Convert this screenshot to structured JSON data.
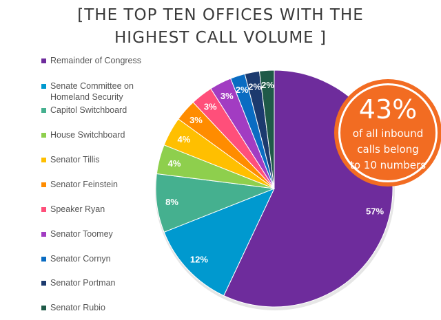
{
  "title_line1": "[THE TOP TEN OFFICES WITH THE",
  "title_line2": "HIGHEST CALL VOLUME ]",
  "callout": {
    "big": "43%",
    "line1": "of all inbound",
    "line2": "calls belong",
    "line3": "to 10 numbers",
    "color": "#f26c22"
  },
  "chart_data": {
    "type": "pie",
    "title": "[THE TOP TEN OFFICES WITH THE HIGHEST CALL VOLUME ]",
    "legend_position": "left",
    "categories": [
      "Remainder of Congress",
      "Senate Committee on Homeland Security",
      "Capitol Switchboard",
      "House Switchboard",
      "Senator Tillis",
      "Senator Feinstein",
      "Speaker Ryan",
      "Senator Toomey",
      "Senator Cornyn",
      "Senator Portman",
      "Senator Rubio"
    ],
    "values": [
      57,
      12,
      8,
      4,
      4,
      3,
      3,
      3,
      2,
      2,
      2
    ],
    "labels": [
      "57%",
      "12%",
      "8%",
      "4%",
      "4%",
      "3%",
      "3%",
      "3%",
      "2%",
      "2%",
      "2%"
    ],
    "colors": [
      "#6e2c9c",
      "#0099cf",
      "#45b08f",
      "#8ecf4d",
      "#ffbf00",
      "#ff8c00",
      "#ff4f7a",
      "#a23cc2",
      "#0a6cc2",
      "#1c3a6e",
      "#1f5a48"
    ]
  }
}
